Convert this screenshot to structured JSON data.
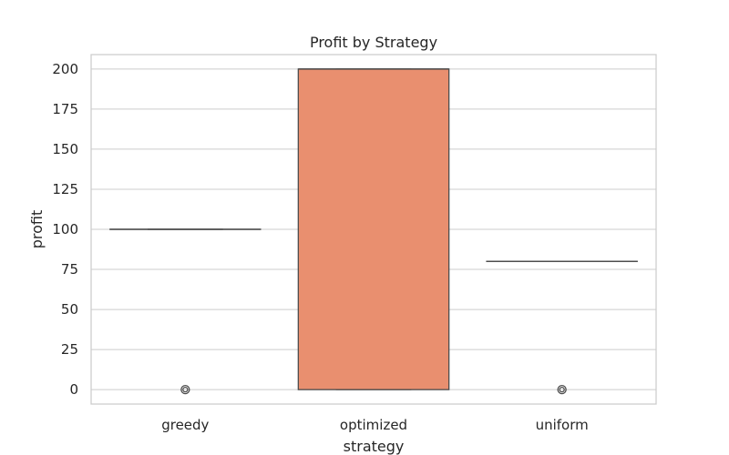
{
  "chart_data": {
    "type": "box",
    "title": "Profit by Strategy",
    "xlabel": "strategy",
    "ylabel": "profit",
    "ylim": [
      -9,
      209
    ],
    "yticks": [
      0,
      25,
      50,
      75,
      100,
      125,
      150,
      175,
      200
    ],
    "ytick_labels": [
      "0",
      "25",
      "50",
      "75",
      "100",
      "125",
      "150",
      "175",
      "200"
    ],
    "grid": true,
    "categories": [
      "greedy",
      "optimized",
      "uniform"
    ],
    "boxes": [
      {
        "name": "greedy",
        "min": 100,
        "q1": 100,
        "median": 100,
        "q3": 100,
        "max": 100,
        "outliers": [
          0
        ],
        "color": "#66c2a5"
      },
      {
        "name": "optimized",
        "min": 0,
        "q1": 0,
        "median": 200,
        "q3": 200,
        "max": 200,
        "outliers": [],
        "color": "#e98f6f"
      },
      {
        "name": "uniform",
        "min": 80,
        "q1": 80,
        "median": 80,
        "q3": 80,
        "max": 80,
        "outliers": [
          0
        ],
        "color": "#8da0cb"
      }
    ],
    "colors": {
      "box_edge": "#4d4d4d",
      "grid": "#cccccc",
      "frame": "#cccccc",
      "text": "#262626"
    }
  }
}
